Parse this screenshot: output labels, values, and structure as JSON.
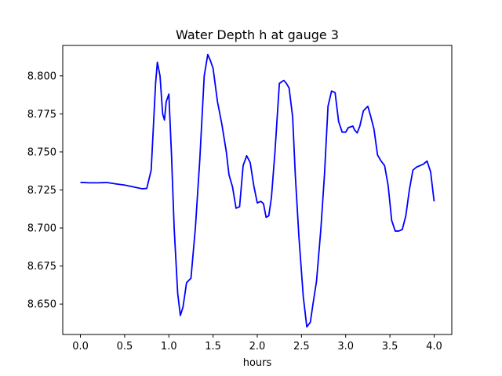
{
  "chart_data": {
    "type": "line",
    "title": "Water Depth h at gauge 3",
    "xlabel": "hours",
    "ylabel": "",
    "xlim": [
      -0.2,
      4.2
    ],
    "ylim": [
      8.63,
      8.82
    ],
    "xticks": [
      0.0,
      0.5,
      1.0,
      1.5,
      2.0,
      2.5,
      3.0,
      3.5,
      4.0
    ],
    "xtick_labels": [
      "0.0",
      "0.5",
      "1.0",
      "1.5",
      "2.0",
      "2.5",
      "3.0",
      "3.5",
      "4.0"
    ],
    "yticks": [
      8.65,
      8.675,
      8.7,
      8.725,
      8.75,
      8.775,
      8.8
    ],
    "ytick_labels": [
      "8.650",
      "8.675",
      "8.700",
      "8.725",
      "8.750",
      "8.775",
      "8.800"
    ],
    "grid": false,
    "legend": "none",
    "series": [
      {
        "color": "#0000ff",
        "x": [
          0.0,
          0.1,
          0.2,
          0.3,
          0.4,
          0.5,
          0.6,
          0.7,
          0.75,
          0.8,
          0.85,
          0.87,
          0.9,
          0.93,
          0.95,
          0.97,
          1.0,
          1.03,
          1.06,
          1.1,
          1.13,
          1.16,
          1.2,
          1.25,
          1.3,
          1.35,
          1.4,
          1.44,
          1.47,
          1.5,
          1.55,
          1.6,
          1.65,
          1.68,
          1.72,
          1.76,
          1.8,
          1.84,
          1.88,
          1.92,
          1.96,
          2.0,
          2.04,
          2.07,
          2.1,
          2.13,
          2.16,
          2.2,
          2.25,
          2.3,
          2.33,
          2.36,
          2.4,
          2.43,
          2.47,
          2.52,
          2.56,
          2.6,
          2.63,
          2.67,
          2.72,
          2.76,
          2.8,
          2.84,
          2.88,
          2.92,
          2.96,
          3.0,
          3.03,
          3.06,
          3.08,
          3.1,
          3.13,
          3.16,
          3.2,
          3.25,
          3.28,
          3.32,
          3.36,
          3.4,
          3.44,
          3.48,
          3.52,
          3.56,
          3.6,
          3.64,
          3.68,
          3.72,
          3.76,
          3.8,
          3.84,
          3.88,
          3.92,
          3.96,
          4.0
        ],
        "y": [
          8.73,
          8.7297,
          8.7297,
          8.7299,
          8.729,
          8.7282,
          8.727,
          8.7258,
          8.726,
          8.738,
          8.795,
          8.809,
          8.8,
          8.775,
          8.771,
          8.783,
          8.788,
          8.748,
          8.7,
          8.657,
          8.6425,
          8.648,
          8.664,
          8.667,
          8.7,
          8.745,
          8.8,
          8.814,
          8.81,
          8.805,
          8.783,
          8.768,
          8.75,
          8.735,
          8.727,
          8.713,
          8.714,
          8.741,
          8.7475,
          8.743,
          8.728,
          8.7165,
          8.7175,
          8.716,
          8.707,
          8.708,
          8.72,
          8.75,
          8.795,
          8.797,
          8.795,
          8.792,
          8.773,
          8.735,
          8.695,
          8.655,
          8.635,
          8.638,
          8.65,
          8.665,
          8.7,
          8.735,
          8.78,
          8.79,
          8.789,
          8.77,
          8.763,
          8.763,
          8.766,
          8.7665,
          8.767,
          8.7645,
          8.7625,
          8.767,
          8.777,
          8.78,
          8.774,
          8.765,
          8.748,
          8.744,
          8.741,
          8.728,
          8.705,
          8.698,
          8.698,
          8.699,
          8.708,
          8.725,
          8.738,
          8.74,
          8.741,
          8.742,
          8.744,
          8.737,
          8.7175
        ]
      }
    ]
  }
}
